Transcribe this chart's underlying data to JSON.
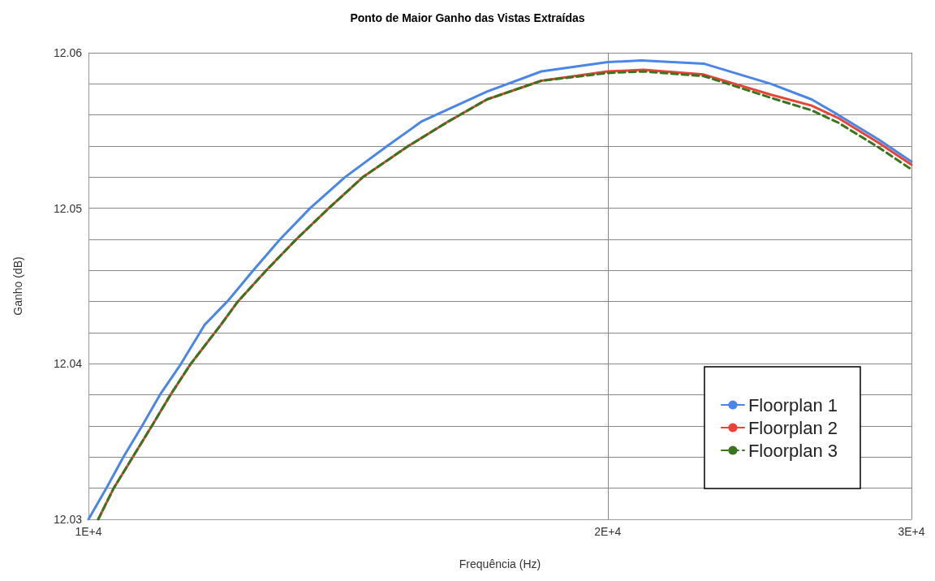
{
  "chart_data": {
    "type": "line",
    "title": "Ponto de Maior Ganho das Vistas Extraídas",
    "xlabel": "Frequência (Hz)",
    "ylabel": "Ganho (dB)",
    "log": "x",
    "xlim": [
      10000,
      30000
    ],
    "xticks": [
      {
        "value": 10000,
        "label": "1E+4"
      },
      {
        "value": 20000,
        "label": "2E+4"
      },
      {
        "value": 30000,
        "label": "3E+4"
      }
    ],
    "ylim": [
      12.03,
      12.06
    ],
    "yticks": [
      12.03,
      {
        "value": 12.032,
        "label": null
      },
      {
        "value": 12.034,
        "label": null
      },
      {
        "value": 12.036,
        "label": null
      },
      {
        "value": 12.038,
        "label": null
      },
      12.04,
      {
        "value": 12.042,
        "label": null
      },
      {
        "value": 12.044,
        "label": null
      },
      {
        "value": 12.046,
        "label": null
      },
      {
        "value": 12.048,
        "label": null
      },
      12.05,
      {
        "value": 12.052,
        "label": null
      },
      {
        "value": 12.054,
        "label": null
      },
      {
        "value": 12.056,
        "label": null
      },
      {
        "value": 12.058,
        "label": null
      },
      12.06
    ],
    "grid": true,
    "legend": "bottom right",
    "marker": "none",
    "line_style": "solid",
    "series": [
      {
        "name": "Floorplan 1",
        "color": "#4a86e8",
        "x": [
          10000,
          10241,
          10477,
          10741,
          11000,
          11315,
          11676,
          12035,
          12460,
          12913,
          13442,
          14083,
          14899,
          15610,
          17023,
          18304,
          20000,
          20914,
          22733,
          24872,
          26256,
          27212,
          28728,
          30000
        ],
        "values": [
          12.03,
          12.032,
          12.034,
          12.036,
          12.038,
          12.04,
          12.0425,
          12.044,
          12.046,
          12.048,
          12.05,
          12.052,
          12.054,
          12.0556,
          12.0575,
          12.0588,
          12.0594,
          12.0595,
          12.0593,
          12.058,
          12.057,
          12.056,
          12.0544,
          12.053
        ]
      },
      {
        "name": "Floorplan 2",
        "color": "#ea4335",
        "x": [
          10131,
          10342,
          10882,
          11156,
          11463,
          11932,
          12206,
          12678,
          13196,
          13781,
          14423,
          15325,
          16178,
          17023,
          18304,
          20000,
          20982,
          22733,
          24872,
          26256,
          27212,
          28728,
          30000
        ],
        "values": [
          12.03,
          12.032,
          12.036,
          12.038,
          12.04,
          12.0425,
          12.044,
          12.046,
          12.048,
          12.05,
          12.052,
          12.054,
          12.0556,
          12.057,
          12.0582,
          12.0588,
          12.0589,
          12.0586,
          12.0573,
          12.0566,
          12.0558,
          12.0542,
          12.0528
        ]
      },
      {
        "name": "Floorplan 3",
        "color": "#38761d",
        "line_style": "dashed",
        "x": [
          10131,
          10342,
          10882,
          11156,
          11463,
          11932,
          12206,
          12678,
          13196,
          13781,
          14423,
          15325,
          16178,
          17023,
          18304,
          20000,
          20982,
          22733,
          24872,
          26256,
          27212,
          28728,
          30000
        ],
        "values": [
          12.03,
          12.032,
          12.036,
          12.038,
          12.04,
          12.0425,
          12.044,
          12.046,
          12.048,
          12.05,
          12.052,
          12.054,
          12.0556,
          12.057,
          12.0582,
          12.0587,
          12.0588,
          12.0585,
          12.0571,
          12.0563,
          12.0555,
          12.0539,
          12.0525
        ]
      }
    ]
  }
}
